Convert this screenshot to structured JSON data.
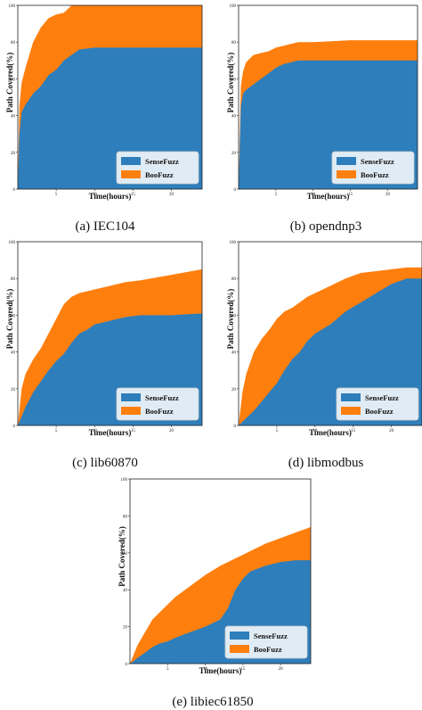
{
  "colors": {
    "sensefuzz": "#2e7ebb",
    "boofuzz": "#ff7f0e"
  },
  "chart_data": [
    {
      "type": "area",
      "caption": "(a) IEC104",
      "xlabel": "Time(hours)",
      "ylabel": "Path Covered(%)",
      "xlim": [
        0,
        24
      ],
      "ylim": [
        0,
        100
      ],
      "xticks": [
        {
          "value": 5,
          "label": "5"
        },
        {
          "value": 10,
          "label": "10"
        },
        {
          "value": 15,
          "label": "15"
        },
        {
          "value": 20,
          "label": "20"
        }
      ],
      "yticks": [
        {
          "value": 0,
          "label": "0"
        },
        {
          "value": 20,
          "label": "20"
        },
        {
          "value": 40,
          "label": "40"
        },
        {
          "value": 60,
          "label": "60"
        },
        {
          "value": 80,
          "label": "80"
        },
        {
          "value": 100,
          "label": "100"
        }
      ],
      "legend": "lower-right",
      "series": [
        {
          "name": "SenseFuzz",
          "color": "#2e7ebb",
          "x": [
            0,
            0.2,
            0.5,
            1,
            2,
            3,
            4,
            5,
            6,
            7,
            8,
            10,
            15,
            20,
            24
          ],
          "y": [
            0,
            30,
            42,
            46,
            52,
            56,
            62,
            65,
            70,
            73,
            76,
            77,
            77,
            77,
            77
          ]
        },
        {
          "name": "BooFuzz",
          "color": "#ff7f0e",
          "x": [
            0,
            0.2,
            0.5,
            1,
            2,
            3,
            4,
            5,
            6,
            7,
            8,
            10,
            15,
            20,
            24
          ],
          "y": [
            0,
            45,
            58,
            66,
            80,
            88,
            93,
            95,
            96,
            100,
            100,
            100,
            100,
            100,
            100
          ]
        }
      ]
    },
    {
      "type": "area",
      "caption": "(b) opendnp3",
      "xlabel": "Time(hours)",
      "ylabel": "Path Covered(%)",
      "xlim": [
        0,
        24
      ],
      "ylim": [
        0,
        100
      ],
      "xticks": [
        {
          "value": 5,
          "label": "5"
        },
        {
          "value": 10,
          "label": "10"
        },
        {
          "value": 15,
          "label": "15"
        },
        {
          "value": 20,
          "label": "20"
        }
      ],
      "yticks": [
        {
          "value": 0,
          "label": "0"
        },
        {
          "value": 20,
          "label": "20"
        },
        {
          "value": 40,
          "label": "40"
        },
        {
          "value": 60,
          "label": "60"
        },
        {
          "value": 80,
          "label": "80"
        },
        {
          "value": 100,
          "label": "100"
        }
      ],
      "legend": "lower-right",
      "series": [
        {
          "name": "SenseFuzz",
          "color": "#2e7ebb",
          "x": [
            0,
            0.3,
            0.6,
            1,
            2,
            3,
            4,
            5,
            6,
            7,
            8,
            10,
            15,
            20,
            24
          ],
          "y": [
            0,
            45,
            52,
            54,
            57,
            60,
            63,
            66,
            68,
            69,
            70,
            70,
            70,
            70,
            70
          ]
        },
        {
          "name": "BooFuzz",
          "color": "#ff7f0e",
          "x": [
            0,
            0.3,
            0.6,
            1,
            2,
            3,
            4,
            5,
            6,
            7,
            8,
            10,
            15,
            20,
            24
          ],
          "y": [
            0,
            56,
            64,
            69,
            73,
            74,
            75,
            77,
            78,
            79,
            80,
            80,
            81,
            81,
            81
          ]
        }
      ]
    },
    {
      "type": "area",
      "caption": "(c) lib60870",
      "xlabel": "Time(hours)",
      "ylabel": "Path Covered(%)",
      "xlim": [
        0,
        24
      ],
      "ylim": [
        0,
        100
      ],
      "xticks": [
        {
          "value": 5,
          "label": "5"
        },
        {
          "value": 10,
          "label": "10"
        },
        {
          "value": 15,
          "label": "15"
        },
        {
          "value": 20,
          "label": "20"
        }
      ],
      "yticks": [
        {
          "value": 0,
          "label": "0"
        },
        {
          "value": 20,
          "label": "20"
        },
        {
          "value": 40,
          "label": "40"
        },
        {
          "value": 60,
          "label": "60"
        },
        {
          "value": 80,
          "label": "80"
        },
        {
          "value": 100,
          "label": "100"
        }
      ],
      "legend": "lower-right",
      "series": [
        {
          "name": "SenseFuzz",
          "color": "#2e7ebb",
          "x": [
            0,
            0.5,
            1,
            2,
            3,
            4,
            5,
            6,
            7,
            8,
            9,
            10,
            12,
            14,
            16,
            20,
            24
          ],
          "y": [
            0,
            5,
            10,
            18,
            24,
            30,
            35,
            39,
            45,
            50,
            52,
            55,
            57,
            59,
            60,
            60,
            61
          ]
        },
        {
          "name": "BooFuzz",
          "color": "#ff7f0e",
          "x": [
            0,
            0.5,
            1,
            2,
            3,
            4,
            5,
            6,
            7,
            8,
            9,
            10,
            12,
            14,
            16,
            20,
            24
          ],
          "y": [
            0,
            20,
            28,
            36,
            42,
            50,
            58,
            66,
            70,
            72,
            73,
            74,
            76,
            78,
            79,
            82,
            85
          ]
        }
      ]
    },
    {
      "type": "area",
      "caption": "(d) libmodbus",
      "xlabel": "Time(hours)",
      "ylabel": "Path Covered(%)",
      "xlim": [
        0,
        24
      ],
      "ylim": [
        0,
        100
      ],
      "xticks": [
        {
          "value": 5,
          "label": "5"
        },
        {
          "value": 10,
          "label": "10"
        },
        {
          "value": 15,
          "label": "15"
        },
        {
          "value": 20,
          "label": "20"
        }
      ],
      "yticks": [
        {
          "value": 0,
          "label": "0"
        },
        {
          "value": 20,
          "label": "20"
        },
        {
          "value": 40,
          "label": "40"
        },
        {
          "value": 60,
          "label": "60"
        },
        {
          "value": 80,
          "label": "80"
        },
        {
          "value": 100,
          "label": "100"
        }
      ],
      "legend": "lower-right",
      "series": [
        {
          "name": "SenseFuzz",
          "color": "#2e7ebb",
          "x": [
            0,
            1,
            2,
            3,
            4,
            5,
            6,
            7,
            8,
            9,
            10,
            12,
            14,
            16,
            18,
            20,
            22,
            24
          ],
          "y": [
            0,
            4,
            8,
            13,
            18,
            23,
            30,
            36,
            40,
            46,
            50,
            55,
            62,
            67,
            72,
            77,
            80,
            80
          ]
        },
        {
          "name": "BooFuzz",
          "color": "#ff7f0e",
          "x": [
            0,
            0.5,
            1,
            2,
            3,
            4,
            5,
            6,
            7,
            8,
            9,
            10,
            12,
            14,
            16,
            18,
            20,
            22,
            24
          ],
          "y": [
            0,
            18,
            28,
            40,
            47,
            52,
            58,
            62,
            64,
            67,
            70,
            72,
            76,
            80,
            83,
            84,
            85,
            86,
            86
          ]
        }
      ]
    },
    {
      "type": "area",
      "caption": "(e) libiec61850",
      "xlabel": "Time(hours)",
      "ylabel": "Path Covered(%)",
      "xlim": [
        0,
        24
      ],
      "ylim": [
        0,
        100
      ],
      "xticks": [
        {
          "value": 5,
          "label": "5"
        },
        {
          "value": 10,
          "label": "10"
        },
        {
          "value": 15,
          "label": "15"
        },
        {
          "value": 20,
          "label": "20"
        }
      ],
      "yticks": [
        {
          "value": 0,
          "label": "0"
        },
        {
          "value": 20,
          "label": "20"
        },
        {
          "value": 40,
          "label": "40"
        },
        {
          "value": 60,
          "label": "60"
        },
        {
          "value": 80,
          "label": "80"
        },
        {
          "value": 100,
          "label": "100"
        }
      ],
      "legend": "lower-right",
      "series": [
        {
          "name": "SenseFuzz",
          "color": "#2e7ebb",
          "x": [
            0,
            1,
            2,
            3,
            4,
            5,
            6,
            8,
            10,
            12,
            13,
            14,
            15,
            16,
            18,
            20,
            22,
            24
          ],
          "y": [
            0,
            3,
            6,
            9,
            11,
            12,
            14,
            17,
            20,
            24,
            30,
            40,
            46,
            50,
            53,
            55,
            56,
            56
          ]
        },
        {
          "name": "BooFuzz",
          "color": "#ff7f0e",
          "x": [
            0,
            1,
            2,
            3,
            4,
            5,
            6,
            8,
            10,
            12,
            14,
            16,
            18,
            20,
            22,
            24
          ],
          "y": [
            0,
            10,
            17,
            24,
            28,
            32,
            36,
            42,
            48,
            53,
            57,
            61,
            65,
            68,
            71,
            74
          ]
        }
      ]
    }
  ]
}
